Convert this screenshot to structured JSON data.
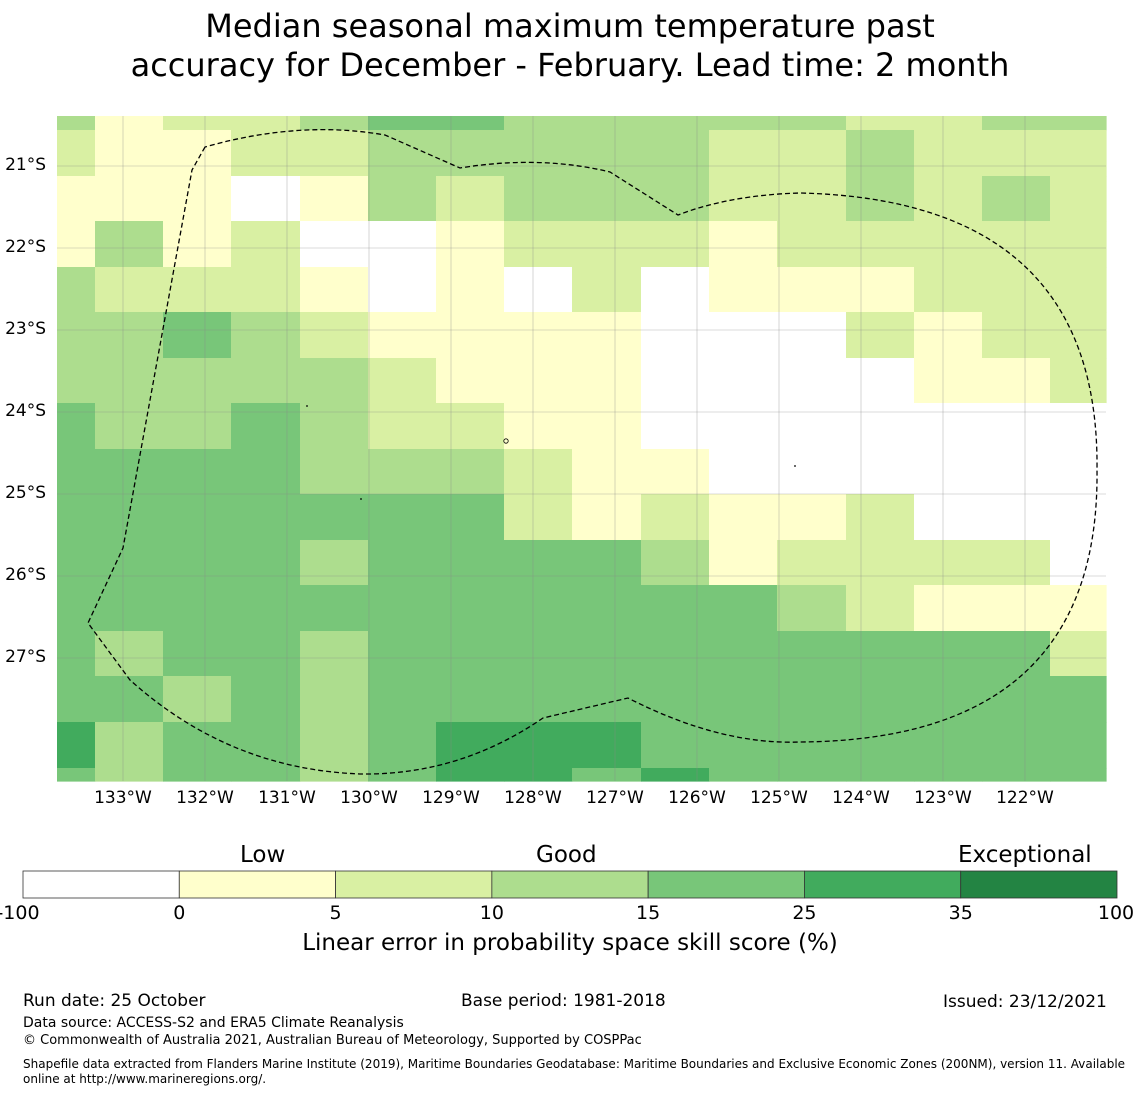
{
  "title_line1": "Median seasonal maximum temperature past",
  "title_line2": "accuracy for December - February. Lead time: 2 month",
  "map": {
    "lat_labels": [
      "21°S",
      "22°S",
      "23°S",
      "24°S",
      "25°S",
      "26°S",
      "27°S"
    ],
    "lon_labels": [
      "133°W",
      "132°W",
      "131°W",
      "130°W",
      "129°W",
      "128°W",
      "127°W",
      "126°W",
      "125°W",
      "124°W",
      "123°W",
      "122°W"
    ],
    "grid_classes": [
      [
        3,
        1,
        2,
        2,
        3,
        4,
        4,
        3,
        3,
        3,
        3,
        3,
        2,
        2,
        3,
        3,
        4
      ],
      [
        2,
        1,
        1,
        2,
        2,
        3,
        3,
        3,
        3,
        3,
        2,
        2,
        3,
        2,
        2,
        2,
        3
      ],
      [
        1,
        1,
        1,
        0,
        1,
        3,
        2,
        3,
        3,
        3,
        2,
        2,
        3,
        2,
        3,
        2,
        3
      ],
      [
        1,
        3,
        1,
        2,
        0,
        0,
        1,
        2,
        2,
        2,
        1,
        2,
        2,
        2,
        2,
        2,
        2
      ],
      [
        3,
        2,
        2,
        2,
        1,
        0,
        1,
        0,
        2,
        0,
        1,
        1,
        1,
        2,
        2,
        2,
        3
      ],
      [
        3,
        3,
        4,
        3,
        2,
        1,
        1,
        1,
        1,
        0,
        0,
        0,
        2,
        1,
        2,
        2,
        3
      ],
      [
        3,
        3,
        3,
        3,
        3,
        2,
        1,
        1,
        1,
        0,
        0,
        0,
        0,
        1,
        1,
        2,
        2
      ],
      [
        4,
        3,
        3,
        4,
        3,
        2,
        2,
        1,
        1,
        0,
        0,
        0,
        0,
        0,
        0,
        0,
        2
      ],
      [
        4,
        4,
        4,
        4,
        3,
        3,
        3,
        2,
        1,
        1,
        0,
        0,
        0,
        0,
        0,
        0,
        0
      ],
      [
        4,
        4,
        4,
        4,
        4,
        4,
        4,
        2,
        1,
        2,
        1,
        1,
        2,
        0,
        0,
        0,
        0
      ],
      [
        4,
        4,
        4,
        4,
        3,
        4,
        4,
        4,
        4,
        3,
        1,
        2,
        2,
        2,
        2,
        0,
        0
      ],
      [
        4,
        4,
        4,
        4,
        4,
        4,
        4,
        4,
        4,
        4,
        4,
        3,
        2,
        1,
        1,
        1,
        2
      ],
      [
        4,
        3,
        4,
        4,
        3,
        4,
        4,
        4,
        4,
        4,
        4,
        4,
        4,
        4,
        4,
        2,
        3
      ],
      [
        4,
        4,
        3,
        4,
        3,
        4,
        4,
        4,
        4,
        4,
        4,
        4,
        4,
        4,
        4,
        4,
        4
      ],
      [
        5,
        3,
        4,
        4,
        3,
        4,
        5,
        5,
        5,
        4,
        4,
        4,
        4,
        4,
        4,
        4,
        4
      ],
      [
        4,
        3,
        4,
        4,
        3,
        4,
        5,
        5,
        4,
        5,
        4,
        4,
        4,
        4,
        4,
        4,
        4
      ]
    ],
    "eez_boundary": "Exclusive Economic Zone boundary"
  },
  "colorbar": {
    "top_labels": {
      "low": "Low",
      "good": "Good",
      "exceptional": "Exceptional"
    },
    "ticks": [
      "-100",
      "0",
      "5",
      "10",
      "15",
      "25",
      "35",
      "100"
    ],
    "colors": [
      "#ffffff",
      "#ffffcc",
      "#d9f0a3",
      "#addd8e",
      "#78c679",
      "#41ab5d",
      "#238443"
    ],
    "xlabel": "Linear error in probability space skill score (%)"
  },
  "footer": {
    "run_date": "Run date: 25 October",
    "base_period": "Base period: 1981-2018",
    "issued": "Issued: 23/12/2021",
    "data_source": "Data source: ACCESS-S2 and ERA5 Climate Reanalysis",
    "copyright": "© Commonwealth of Australia 2021, Australian Bureau of Meteorology, Supported by COSPPac",
    "shapefile_line1": "Shapefile data extracted from Flanders Marine Institute (2019), Maritime Boundaries Geodatabase: Maritime Boundaries and Exclusive Economic Zones (200NM), version 11. Available",
    "shapefile_line2": "online at http://www.marineregions.org/."
  }
}
